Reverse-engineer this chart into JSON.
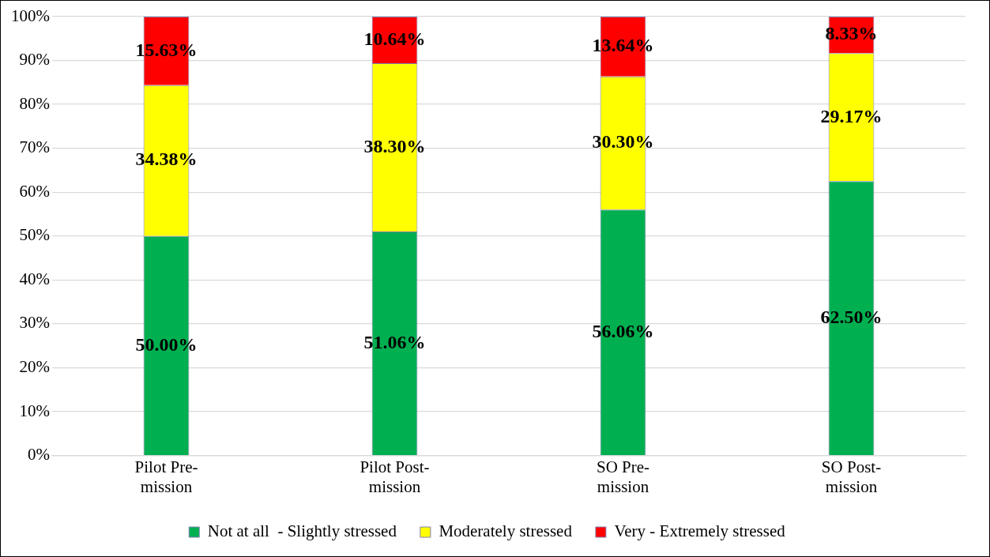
{
  "chart_data": {
    "type": "bar",
    "stacked": true,
    "categories": [
      "Pilot Pre-mission",
      "Pilot Post-mission",
      "SO Pre-mission",
      "SO Post-mission"
    ],
    "series": [
      {
        "name": "Not at all  - Slightly stressed",
        "color": "#00b050",
        "values": [
          50.0,
          51.06,
          56.06,
          62.5
        ],
        "value_labels": [
          "50.00%",
          "51.06%",
          "56.06%",
          "62.50%"
        ]
      },
      {
        "name": "Moderately stressed",
        "color": "#ffff00",
        "values": [
          34.38,
          38.3,
          30.3,
          29.17
        ],
        "value_labels": [
          "34.38%",
          "38.30%",
          "30.30%",
          "29.17%"
        ]
      },
      {
        "name": "Very - Extremely stressed",
        "color": "#ff0000",
        "values": [
          15.63,
          10.64,
          13.64,
          8.33
        ],
        "value_labels": [
          "15.63%",
          "10.64%",
          "13.64%",
          "8.33%"
        ]
      }
    ],
    "ylim": [
      0,
      100
    ],
    "yticks": [
      {
        "value": 0,
        "label": "0%"
      },
      {
        "value": 10,
        "label": "10%"
      },
      {
        "value": 20,
        "label": "20%"
      },
      {
        "value": 30,
        "label": "30%"
      },
      {
        "value": 40,
        "label": "40%"
      },
      {
        "value": 50,
        "label": "50%"
      },
      {
        "value": 60,
        "label": "60%"
      },
      {
        "value": 70,
        "label": "70%"
      },
      {
        "value": 80,
        "label": "80%"
      },
      {
        "value": 90,
        "label": "90%"
      },
      {
        "value": 100,
        "label": "100%"
      }
    ],
    "grid": "y",
    "legend": "bottom"
  }
}
